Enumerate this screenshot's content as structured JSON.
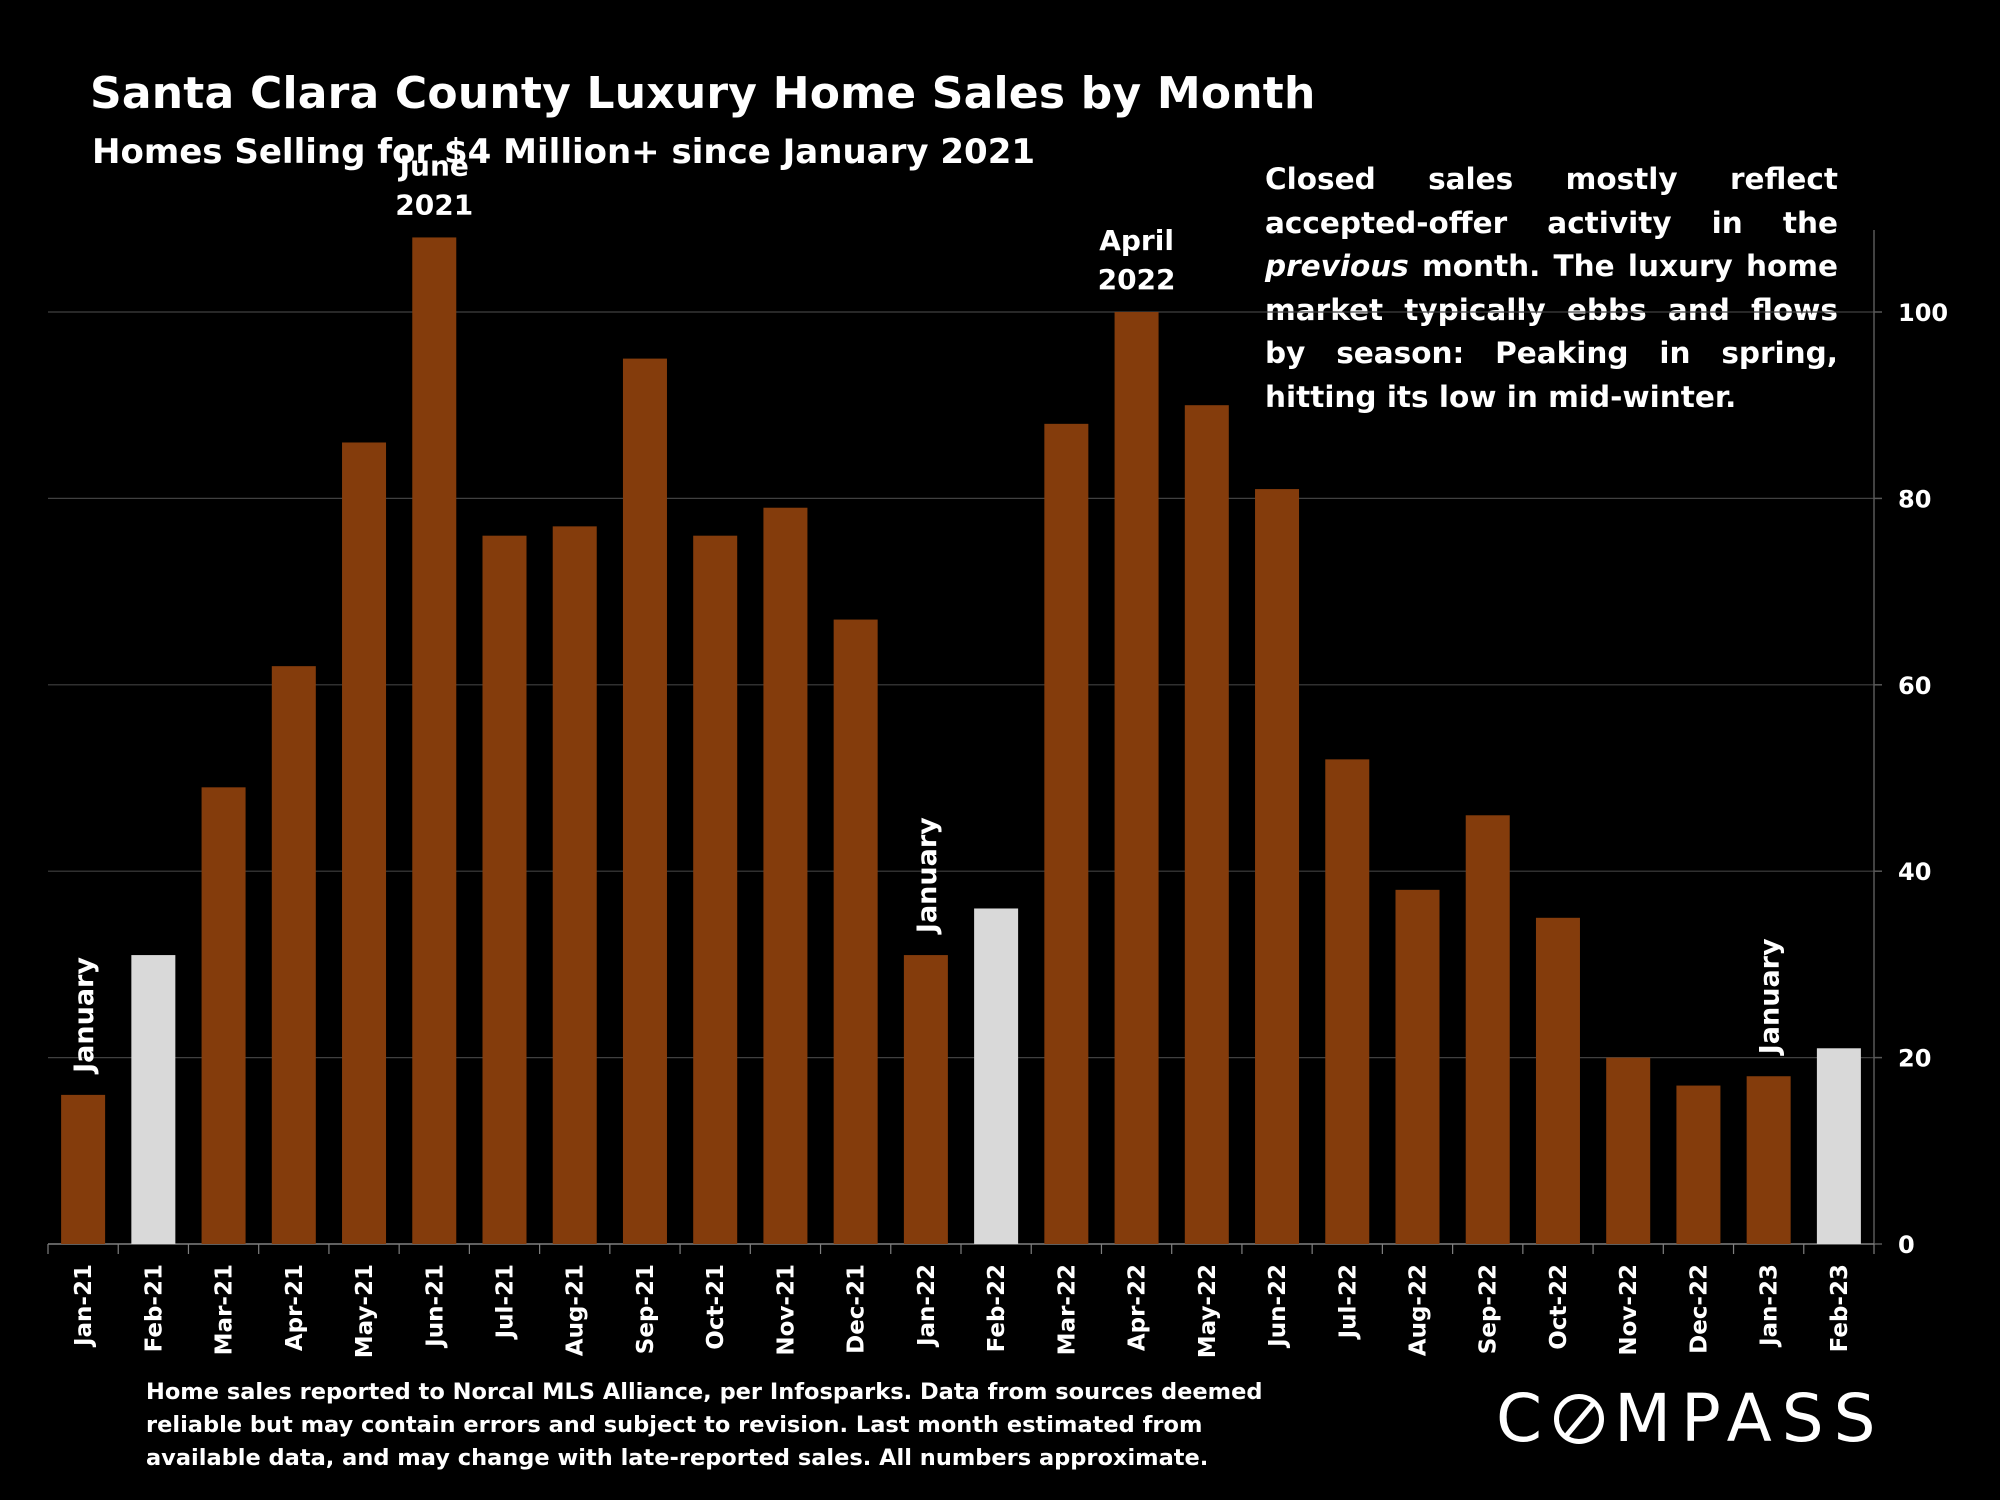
{
  "title": "Santa Clara County Luxury Home Sales by Month",
  "subtitle": "Homes Selling for $4 Million+ since January 2021",
  "note": {
    "before": "Closed sales mostly reflect accepted-offer activity in the ",
    "emphasis": "previous",
    "after": " month. The luxury home market typically ebbs and flows by season: Peaking in spring, hitting its low in mid-winter."
  },
  "source": "Home sales reported to Norcal MLS Alliance, per Infosparks. Data from sources deemed reliable but may contain errors and subject to revision.  Last month estimated from available data, and may change with late-reported sales. All numbers approximate.",
  "logo": {
    "left": "C",
    "right": "MPASS"
  },
  "colors": {
    "bar": "#843C0C",
    "highlight": "#D9D9D9",
    "grid": "#404040",
    "text": "#ffffff"
  },
  "chart_data": {
    "type": "bar",
    "categories": [
      "Jan-21",
      "Feb-21",
      "Mar-21",
      "Apr-21",
      "May-21",
      "Jun-21",
      "Jul-21",
      "Aug-21",
      "Sep-21",
      "Oct-21",
      "Nov-21",
      "Dec-21",
      "Jan-22",
      "Feb-22",
      "Mar-22",
      "Apr-22",
      "May-22",
      "Jun-22",
      "Jul-22",
      "Aug-22",
      "Sep-22",
      "Oct-22",
      "Nov-22",
      "Dec-22",
      "Jan-23",
      "Feb-23"
    ],
    "values": [
      16,
      31,
      49,
      62,
      86,
      108,
      76,
      77,
      95,
      76,
      79,
      67,
      31,
      36,
      88,
      100,
      90,
      81,
      52,
      38,
      46,
      35,
      20,
      17,
      18,
      21
    ],
    "highlighted": [
      "Feb-21",
      "Feb-22",
      "Feb-23"
    ],
    "title": "Santa Clara County Luxury Home Sales by Month",
    "subtitle": "Homes Selling for $4 Million+ since January 2021",
    "xlabel": "",
    "ylabel": "",
    "ylim": [
      0,
      110
    ],
    "yticks": [
      0,
      20,
      40,
      60,
      80,
      100
    ],
    "y_axis_side": "right",
    "grid": true,
    "annotations": [
      {
        "text": "January",
        "category": "Jan-21",
        "rotated": true
      },
      {
        "text": "June 2021",
        "category": "Jun-21",
        "rotated": false
      },
      {
        "text": "January",
        "category": "Jan-22",
        "rotated": true
      },
      {
        "text": "April 2022",
        "category": "Apr-22",
        "rotated": false
      },
      {
        "text": "January",
        "category": "Jan-23",
        "rotated": true
      }
    ]
  }
}
